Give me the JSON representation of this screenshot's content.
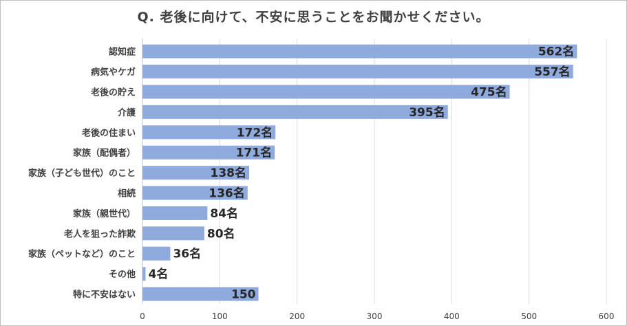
{
  "chart_data": {
    "type": "bar",
    "orientation": "horizontal",
    "title": "Q. 老後に向けて、不安に思うことをお聞かせください。",
    "categories": [
      "認知症",
      "病気やケガ",
      "老後の貯え",
      "介護",
      "老後の住まい",
      "家族（配偶者）",
      "家族（子ども世代）のこと",
      "相続",
      "家族（親世代）",
      "老人を狙った詐欺",
      "家族（ペットなど）のこと",
      "その他",
      "特に不安はない"
    ],
    "values": [
      562,
      557,
      475,
      395,
      172,
      171,
      138,
      136,
      84,
      80,
      36,
      4,
      150
    ],
    "data_labels": [
      "562名",
      "557名",
      "475名",
      "395名",
      "172名",
      "171名",
      "138名",
      "136名",
      "84名",
      "80名",
      "36名",
      "4名",
      "150"
    ],
    "xlim": [
      0,
      600
    ],
    "xticks": [
      "0",
      "100",
      "200",
      "300",
      "400",
      "500",
      "600"
    ],
    "grid": true,
    "bar_color": "#8faadc",
    "grid_color": "#d9d9d9"
  }
}
